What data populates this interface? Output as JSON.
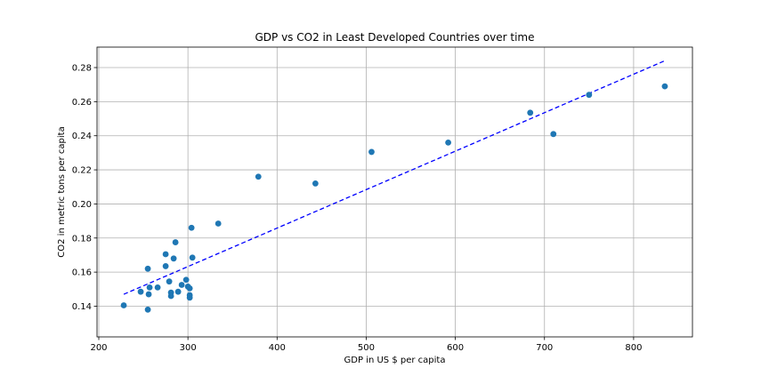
{
  "chart_data": {
    "type": "scatter",
    "title": "GDP vs CO2 in Least Developed Countries over time",
    "xlabel": "GDP in US $ per capita",
    "ylabel": "CO2 in metric tons per capita",
    "xlim": [
      198,
      866
    ],
    "ylim": [
      0.122,
      0.292
    ],
    "xticks": [
      200,
      300,
      400,
      500,
      600,
      700,
      800
    ],
    "yticks": [
      0.14,
      0.16,
      0.18,
      0.2,
      0.22,
      0.24,
      0.26,
      0.28
    ],
    "xtick_labels": [
      "200",
      "300",
      "400",
      "500",
      "600",
      "700",
      "800"
    ],
    "ytick_labels": [
      "0.14",
      "0.16",
      "0.18",
      "0.20",
      "0.22",
      "0.24",
      "0.26",
      "0.28"
    ],
    "grid": true,
    "point_color": "#1f77b4",
    "trend_color": "#0000ff",
    "points": [
      {
        "x": 228,
        "y": 0.1405
      },
      {
        "x": 247,
        "y": 0.1485
      },
      {
        "x": 255,
        "y": 0.138
      },
      {
        "x": 255,
        "y": 0.162
      },
      {
        "x": 256,
        "y": 0.147
      },
      {
        "x": 257,
        "y": 0.151
      },
      {
        "x": 266,
        "y": 0.151
      },
      {
        "x": 275,
        "y": 0.1705
      },
      {
        "x": 275,
        "y": 0.1635
      },
      {
        "x": 279,
        "y": 0.1545
      },
      {
        "x": 281,
        "y": 0.148
      },
      {
        "x": 281,
        "y": 0.146
      },
      {
        "x": 284,
        "y": 0.168
      },
      {
        "x": 286,
        "y": 0.1775
      },
      {
        "x": 289,
        "y": 0.1485
      },
      {
        "x": 293,
        "y": 0.1525
      },
      {
        "x": 298,
        "y": 0.1555
      },
      {
        "x": 300,
        "y": 0.1515
      },
      {
        "x": 302,
        "y": 0.1505
      },
      {
        "x": 302,
        "y": 0.1465
      },
      {
        "x": 302,
        "y": 0.145
      },
      {
        "x": 304,
        "y": 0.186
      },
      {
        "x": 305,
        "y": 0.1685
      },
      {
        "x": 334,
        "y": 0.1885
      },
      {
        "x": 379,
        "y": 0.216
      },
      {
        "x": 443,
        "y": 0.212
      },
      {
        "x": 506,
        "y": 0.2305
      },
      {
        "x": 592,
        "y": 0.236
      },
      {
        "x": 684,
        "y": 0.2535
      },
      {
        "x": 710,
        "y": 0.241
      },
      {
        "x": 750,
        "y": 0.264
      },
      {
        "x": 835,
        "y": 0.269
      }
    ],
    "trendline": [
      {
        "x": 228,
        "y": 0.147
      },
      {
        "x": 835,
        "y": 0.284
      }
    ]
  }
}
